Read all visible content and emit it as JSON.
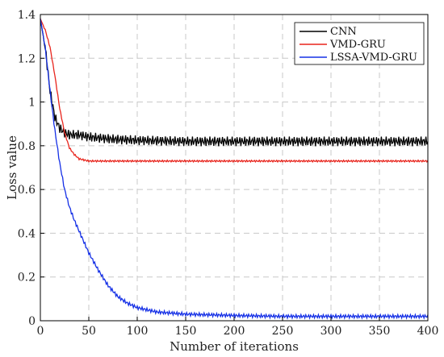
{
  "chart_data": {
    "type": "line",
    "title": "",
    "xlabel": "Number of iterations",
    "ylabel": "Loss value",
    "xlim": [
      0,
      400
    ],
    "ylim": [
      0,
      1.4
    ],
    "xticks": [
      0,
      50,
      100,
      150,
      200,
      250,
      300,
      350,
      400
    ],
    "yticks": [
      0,
      0.2,
      0.4,
      0.6,
      0.8,
      1,
      1.2,
      1.4
    ],
    "xtick_labels": [
      "0",
      "50",
      "100",
      "150",
      "200",
      "250",
      "300",
      "350",
      "400"
    ],
    "ytick_labels": [
      "0",
      "0.2",
      "0.4",
      "0.6",
      "0.8",
      "1",
      "1.2",
      "1.4"
    ],
    "grid": true,
    "legend_position": "top-right",
    "series": [
      {
        "name": "CNN",
        "color": "#000000",
        "x": [
          0,
          5,
          10,
          15,
          20,
          25,
          30,
          40,
          50,
          75,
          100,
          150,
          200,
          250,
          300,
          350,
          400
        ],
        "y": [
          1.38,
          1.25,
          1.05,
          0.93,
          0.88,
          0.86,
          0.85,
          0.85,
          0.84,
          0.83,
          0.825,
          0.82,
          0.82,
          0.82,
          0.82,
          0.82,
          0.82
        ],
        "oscillation_amplitude": 0.022
      },
      {
        "name": "VMD-GRU",
        "color": "#e8241c",
        "x": [
          0,
          5,
          10,
          15,
          20,
          25,
          30,
          35,
          40,
          45,
          50,
          75,
          100,
          150,
          200,
          250,
          300,
          350,
          400
        ],
        "y": [
          1.38,
          1.33,
          1.25,
          1.12,
          0.97,
          0.86,
          0.79,
          0.76,
          0.74,
          0.735,
          0.73,
          0.73,
          0.73,
          0.73,
          0.73,
          0.73,
          0.73,
          0.73,
          0.73
        ],
        "oscillation_amplitude": 0.004
      },
      {
        "name": "LSSA-VMD-GRU",
        "color": "#1530e6",
        "x": [
          0,
          5,
          10,
          15,
          20,
          25,
          30,
          35,
          40,
          45,
          50,
          60,
          70,
          80,
          90,
          100,
          120,
          150,
          200,
          250,
          300,
          350,
          400
        ],
        "y": [
          1.38,
          1.25,
          1.05,
          0.87,
          0.72,
          0.6,
          0.52,
          0.46,
          0.41,
          0.36,
          0.31,
          0.23,
          0.16,
          0.11,
          0.08,
          0.06,
          0.04,
          0.03,
          0.024,
          0.02,
          0.02,
          0.02,
          0.02
        ],
        "oscillation_amplitude": 0.008
      }
    ]
  }
}
